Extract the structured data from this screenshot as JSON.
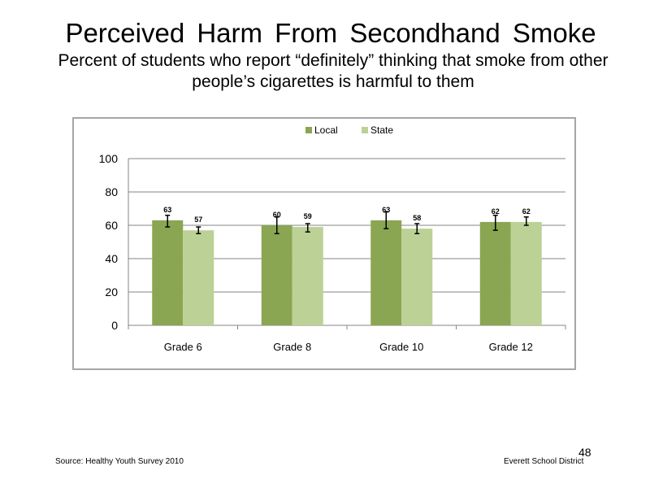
{
  "slide": {
    "title": "Perceived  Harm From Secondhand  Smoke",
    "subtitle": "Percent of students who report “definitely” thinking that smoke from other people’s cigarettes is harmful to them",
    "source": "Source: Healthy Youth Survey 2010",
    "organization": "Everett School District",
    "page_number": "48"
  },
  "colors": {
    "local": "#8aa652",
    "state": "#bcd196",
    "grid": "#868686",
    "error_bar": "#000000"
  },
  "chart_data": {
    "type": "bar",
    "categories": [
      "Grade 6",
      "Grade 8",
      "Grade 10",
      "Grade 12"
    ],
    "series": [
      {
        "name": "Local",
        "values": [
          63,
          60,
          63,
          62
        ],
        "labels": [
          "63",
          "60",
          "63",
          "62"
        ],
        "error_low": [
          59,
          55,
          58,
          57
        ],
        "error_high": [
          66,
          65,
          68,
          66
        ]
      },
      {
        "name": "State",
        "values": [
          57,
          59,
          58,
          62
        ],
        "labels": [
          "57",
          "59",
          "58",
          "62"
        ],
        "error_low": [
          55,
          56,
          55,
          60
        ],
        "error_high": [
          59,
          61,
          61,
          65
        ]
      }
    ],
    "yticks": [
      "0",
      "20",
      "40",
      "60",
      "80",
      "100"
    ],
    "ylim": [
      0,
      100
    ],
    "grid": true,
    "legend_position": "top"
  }
}
